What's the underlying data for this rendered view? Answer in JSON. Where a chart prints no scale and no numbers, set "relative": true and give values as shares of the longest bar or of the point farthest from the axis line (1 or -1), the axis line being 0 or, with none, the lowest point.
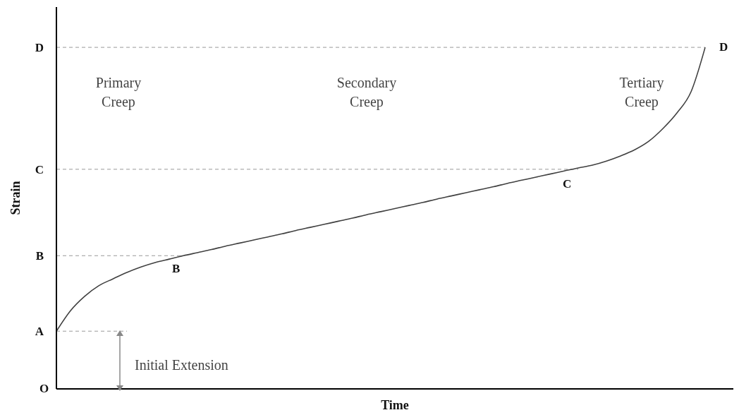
{
  "chart_data": {
    "type": "line",
    "relative": true,
    "xlabel": "Time",
    "ylabel": "Strain",
    "categories": [
      null,
      null,
      null,
      null,
      null,
      null,
      null,
      null,
      null,
      null,
      null,
      null,
      null,
      null,
      null,
      null,
      null,
      null,
      null,
      null,
      null,
      null,
      null,
      null,
      null,
      null,
      null,
      null,
      null,
      null,
      null,
      null,
      null,
      null,
      null,
      null,
      null,
      null,
      null,
      null,
      null,
      null,
      null,
      null,
      null,
      null,
      null,
      null,
      null
    ],
    "series": [
      {
        "color": "#404040",
        "values": [
          0.169,
          0.229,
          0.271,
          0.302,
          0.322,
          0.341,
          0.357,
          0.37,
          0.38,
          0.39,
          0.399,
          0.408,
          0.418,
          0.427,
          0.436,
          0.445,
          0.454,
          0.464,
          0.473,
          0.482,
          0.491,
          0.5,
          0.51,
          0.519,
          0.528,
          0.537,
          0.546,
          0.556,
          0.565,
          0.574,
          0.583,
          0.592,
          0.602,
          0.611,
          0.62,
          0.629,
          0.638,
          0.647,
          0.655,
          0.667,
          0.682,
          0.7,
          0.725,
          0.762,
          0.808,
          0.87,
          1.0,
          null,
          null
        ]
      }
    ],
    "ref_lines": [
      {
        "axis": "y",
        "value": 0.169,
        "label": "A",
        "color": "#999999",
        "line_style": "dashed"
      },
      {
        "axis": "y",
        "value": 0.39,
        "label": "B",
        "color": "#999999",
        "line_style": "dashed"
      },
      {
        "axis": "y",
        "value": 0.643,
        "label": "C",
        "color": "#999999",
        "line_style": "dashed"
      },
      {
        "axis": "y",
        "value": 1.0,
        "label": "D",
        "color": "#999999",
        "line_style": "dashed"
      }
    ],
    "annotations": [
      "O",
      "B",
      "C",
      "D",
      "Primary Creep",
      "Secondary Creep",
      "Tertiary Creep",
      "Initial Extension"
    ]
  }
}
